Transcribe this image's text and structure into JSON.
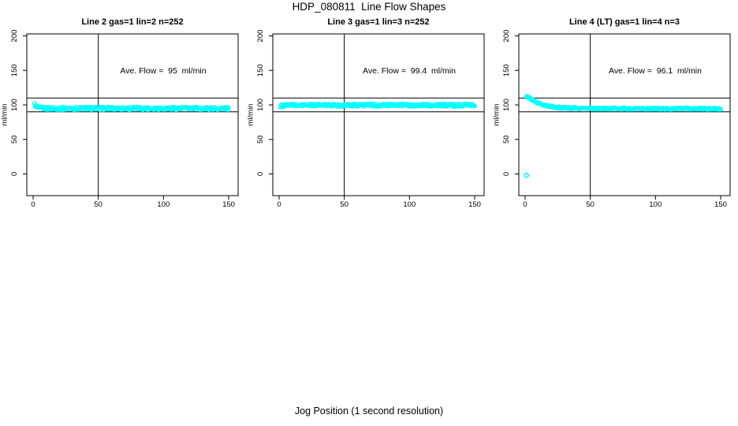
{
  "page": {
    "title": "HDP_080811  Line Flow Shapes",
    "xlabel": "Jog Position (1 second resolution)"
  },
  "colors": {
    "points": "#00FFFF",
    "axis": "#000000",
    "background": "#FFFFFF"
  },
  "chart_data": [
    {
      "type": "scatter",
      "title": "Line 2 gas=1 lin=2 n=252",
      "annotation": "Ave. Flow =  95  ml/min",
      "ave_flow_ml_min": 95,
      "n_points": 252,
      "ylabel": "ml/min",
      "x_ticks": [
        0,
        50,
        100,
        150
      ],
      "y_ticks": [
        0,
        50,
        100,
        150,
        200
      ],
      "xlim": [
        -5,
        157
      ],
      "ylim": [
        -31,
        203
      ],
      "vline_x": 50,
      "hlines": [
        110,
        90
      ],
      "grid": false,
      "marker": "open-circle",
      "profile": [
        [
          1,
          101
        ],
        [
          2,
          98
        ],
        [
          3,
          96.5
        ],
        [
          4,
          95.8
        ],
        [
          6,
          95.2
        ],
        [
          10,
          95
        ],
        [
          40,
          95
        ],
        [
          80,
          95
        ],
        [
          120,
          95
        ],
        [
          150,
          94.8
        ]
      ],
      "jitter": 2.2,
      "n_draw": 250,
      "outliers": []
    },
    {
      "type": "scatter",
      "title": "Line 3 gas=1 lin=3 n=252",
      "annotation": "Ave. Flow =  99.4  ml/min",
      "ave_flow_ml_min": 99.4,
      "n_points": 252,
      "ylabel": "ml/min",
      "x_ticks": [
        0,
        50,
        100,
        150
      ],
      "y_ticks": [
        0,
        50,
        100,
        150,
        200
      ],
      "xlim": [
        -5,
        157
      ],
      "ylim": [
        -31,
        203
      ],
      "vline_x": 50,
      "hlines": [
        110,
        90
      ],
      "grid": false,
      "marker": "open-circle",
      "profile": [
        [
          1,
          97.5
        ],
        [
          2,
          98.8
        ],
        [
          4,
          99.4
        ],
        [
          8,
          99.6
        ],
        [
          30,
          99.7
        ],
        [
          80,
          99.6
        ],
        [
          150,
          99.5
        ]
      ],
      "jitter": 2.0,
      "n_draw": 250,
      "outliers": []
    },
    {
      "type": "scatter",
      "title": "Line 4 (LT) gas=1 lin=4 n=3",
      "annotation": "Ave. Flow =  96.1  ml/min",
      "ave_flow_ml_min": 96.1,
      "n_points": 3,
      "ylabel": "ml/min",
      "x_ticks": [
        0,
        50,
        100,
        150
      ],
      "y_ticks": [
        0,
        50,
        100,
        150,
        200
      ],
      "xlim": [
        -5,
        157
      ],
      "ylim": [
        -31,
        203
      ],
      "vline_x": 50,
      "hlines": [
        110,
        90
      ],
      "grid": false,
      "marker": "open-circle",
      "profile": [
        [
          1,
          111.5
        ],
        [
          3,
          110.5
        ],
        [
          5,
          108
        ],
        [
          8,
          104.5
        ],
        [
          12,
          101
        ],
        [
          16,
          98.8
        ],
        [
          22,
          97
        ],
        [
          30,
          95.8
        ],
        [
          40,
          95.2
        ],
        [
          55,
          94.8
        ],
        [
          80,
          94.6
        ],
        [
          120,
          94.5
        ],
        [
          150,
          94.5
        ]
      ],
      "jitter": 1.4,
      "n_draw": 250,
      "outliers": [
        [
          1,
          -2
        ]
      ]
    }
  ]
}
